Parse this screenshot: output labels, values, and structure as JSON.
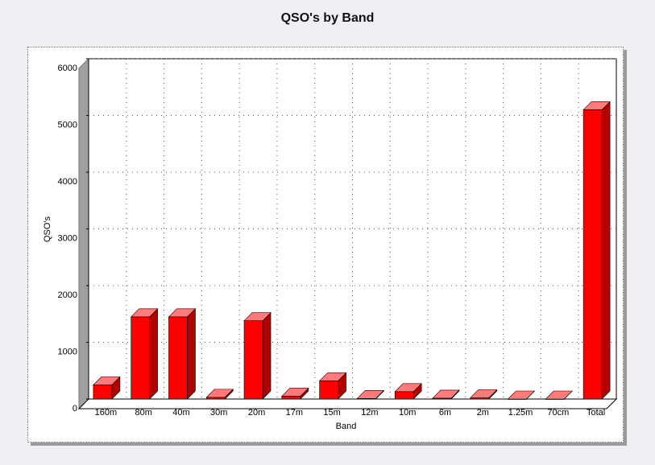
{
  "chart_data": {
    "type": "bar",
    "title": "QSO's by Band",
    "xlabel": "Band",
    "ylabel": "QSO's",
    "categories": [
      "160m",
      "80m",
      "40m",
      "30m",
      "20m",
      "17m",
      "15m",
      "12m",
      "10m",
      "6m",
      "2m",
      "1.25m",
      "70cm",
      "Total"
    ],
    "values": [
      250,
      1450,
      1450,
      30,
      1380,
      50,
      320,
      10,
      130,
      15,
      20,
      0,
      0,
      5100
    ],
    "ylim": [
      0,
      6000
    ],
    "yticks": [
      "0",
      "1000",
      "2000",
      "3000",
      "4000",
      "5000",
      "6000"
    ],
    "grid": true,
    "legend": "none"
  },
  "colors": {
    "bar_front": "#ff0000",
    "bar_top": "#ff7a7a",
    "bar_side": "#b00000",
    "wall": "#a0a0a0",
    "grid": "#555555"
  }
}
